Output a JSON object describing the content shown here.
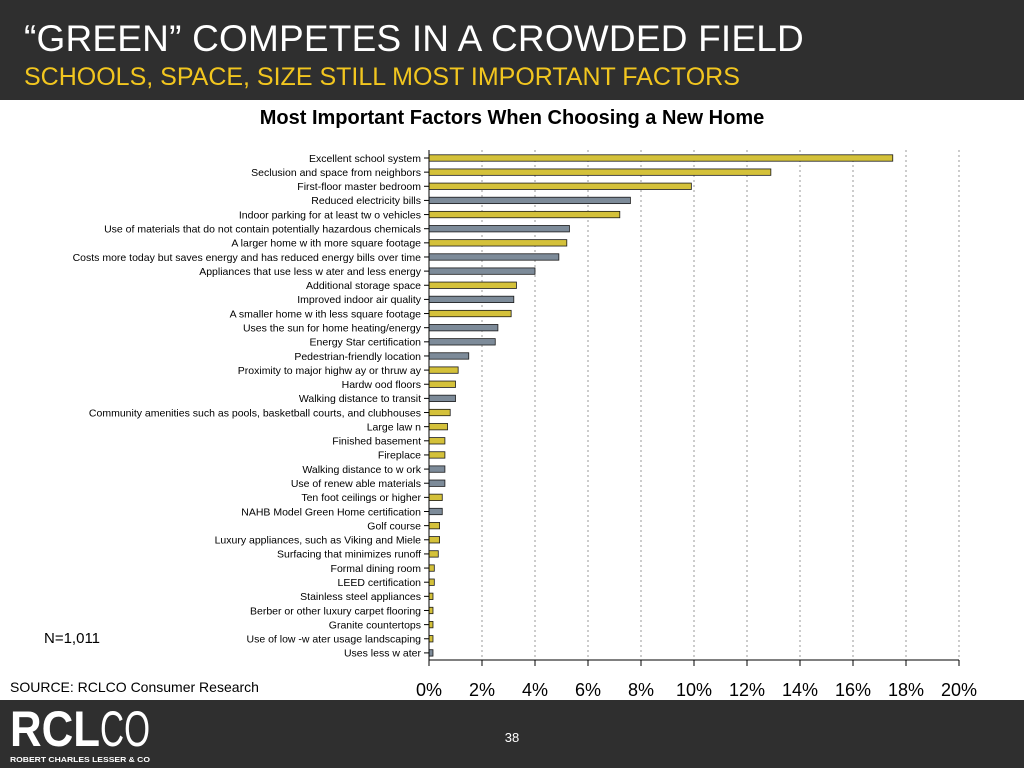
{
  "header": {
    "title": "“GREEN” COMPETES IN A CROWDED FIELD",
    "subtitle": "SCHOOLS, SPACE, SIZE  STILL MOST IMPORTANT FACTORS"
  },
  "chart_data": {
    "type": "bar",
    "orientation": "horizontal",
    "title": "Most Important Factors When Choosing a New Home",
    "xlim": [
      0,
      20
    ],
    "x_ticks": [
      "0%",
      "2%",
      "4%",
      "6%",
      "8%",
      "10%",
      "12%",
      "14%",
      "16%",
      "18%",
      "20%"
    ],
    "grid": "vertical dashed",
    "colors": {
      "gold": "#d4c13a",
      "slate": "#7d8b99"
    },
    "categories": [
      "Excellent school system",
      "Seclusion and space from neighbors",
      "First-floor master bedroom",
      "Reduced electricity bills",
      "Indoor parking for at least tw o vehicles",
      "Use of materials that do not contain potentially hazardous chemicals",
      "A larger home w ith more square footage",
      "Costs more today but saves energy and has reduced energy bills over time",
      "Appliances that use less w ater and less energy",
      "Additional storage space",
      "Improved indoor air quality",
      "A smaller home w ith less square footage",
      "Uses the sun for home heating/energy",
      "Energy Star certification",
      "Pedestrian-friendly location",
      "Proximity to major highw ay or thruw ay",
      "Hardw ood floors",
      "Walking distance to transit",
      "Community amenities such as pools, basketball courts, and clubhouses",
      "Large law n",
      "Finished basement",
      "Fireplace",
      "Walking distance to w ork",
      "Use of renew able materials",
      "Ten foot ceilings or higher",
      "NAHB Model Green Home certification",
      "Golf course",
      "Luxury appliances, such as Viking and Miele",
      "Surfacing that minimizes runoff",
      "Formal dining room",
      "LEED certification",
      "Stainless steel appliances",
      "Berber or other luxury carpet flooring",
      "Granite countertops",
      "Use of low -w ater usage landscaping",
      "Uses less w ater"
    ],
    "values": [
      17.5,
      12.9,
      9.9,
      7.6,
      7.2,
      5.3,
      5.2,
      4.9,
      4.0,
      3.3,
      3.2,
      3.1,
      2.6,
      2.5,
      1.5,
      1.1,
      1.0,
      1.0,
      0.8,
      0.7,
      0.6,
      0.6,
      0.6,
      0.6,
      0.5,
      0.5,
      0.4,
      0.4,
      0.35,
      0.2,
      0.2,
      0.15,
      0.15,
      0.15,
      0.15,
      0.15
    ],
    "bar_colors": [
      "gold",
      "gold",
      "gold",
      "slate",
      "gold",
      "slate",
      "gold",
      "slate",
      "slate",
      "gold",
      "slate",
      "gold",
      "slate",
      "slate",
      "slate",
      "gold",
      "gold",
      "slate",
      "gold",
      "gold",
      "gold",
      "gold",
      "slate",
      "slate",
      "gold",
      "slate",
      "gold",
      "gold",
      "gold",
      "gold",
      "gold",
      "gold",
      "gold",
      "gold",
      "gold",
      "slate"
    ]
  },
  "sample_size": "N=1,011",
  "source": "SOURCE: RCLCO Consumer Research",
  "footer": {
    "logo_text": "RCLCO",
    "logo_tagline": "ROBERT CHARLES LESSER & CO",
    "page_number": "38"
  }
}
